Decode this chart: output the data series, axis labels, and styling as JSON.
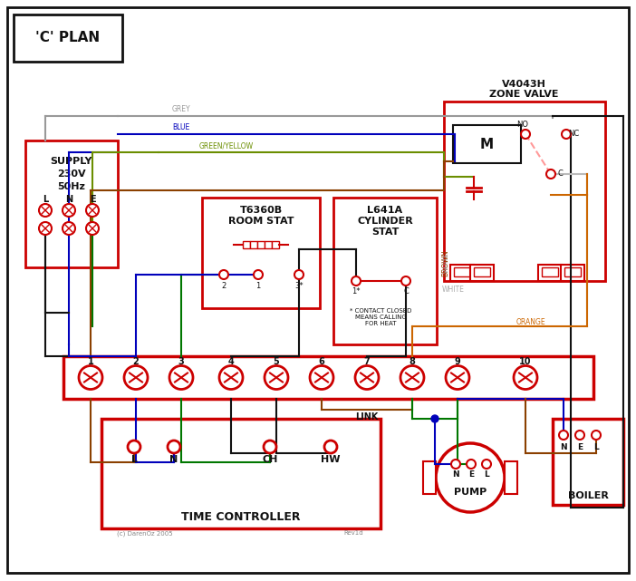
{
  "bg_color": "#ffffff",
  "red": "#cc0000",
  "blue": "#0000bb",
  "green": "#007700",
  "grey": "#999999",
  "brown": "#8B4000",
  "orange": "#cc6600",
  "black": "#111111",
  "gy": "#6b8e00",
  "title": "'C' PLAN",
  "supply_text1": "SUPPLY",
  "supply_text2": "230V",
  "supply_text3": "50Hz",
  "zone_valve_t1": "V4043H",
  "zone_valve_t2": "ZONE VALVE",
  "room_stat_t1": "T6360B",
  "room_stat_t2": "ROOM STAT",
  "cyl_stat_t1": "L641A",
  "cyl_stat_t2": "CYLINDER",
  "cyl_stat_t3": "STAT",
  "contact_note": "* CONTACT CLOSED\nMEANS CALLING\nFOR HEAT",
  "time_ctrl": "TIME CONTROLLER",
  "pump_lbl": "PUMP",
  "boiler_lbl": "BOILER",
  "link_lbl": "LINK",
  "grey_lbl": "GREY",
  "blue_lbl": "BLUE",
  "gy_lbl": "GREEN/YELLOW",
  "brown_lbl": "BROWN",
  "white_lbl": "WHITE",
  "orange_lbl": "ORANGE",
  "copyright": "(c) DarenOz 2005",
  "rev": "Rev1d"
}
